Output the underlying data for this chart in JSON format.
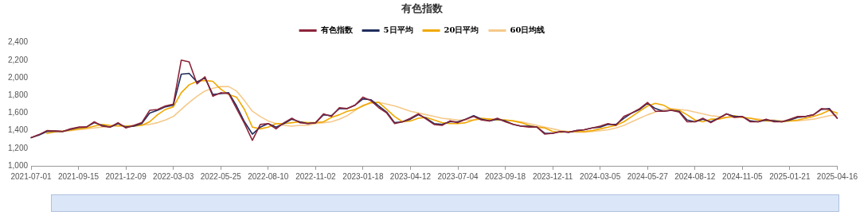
{
  "chart_data": {
    "type": "line",
    "title": "有色指数",
    "legend": "top",
    "marker": "none",
    "grid": false,
    "line_style": "solid",
    "categories": [
      "2021-07-01",
      null,
      null,
      null,
      null,
      null,
      "2021-09-15",
      null,
      null,
      null,
      null,
      null,
      "2021-12-09",
      null,
      null,
      null,
      null,
      null,
      "2022-03-03",
      null,
      null,
      null,
      null,
      null,
      "2022-05-25",
      null,
      null,
      null,
      null,
      null,
      "2022-08-10",
      null,
      null,
      null,
      null,
      null,
      "2022-11-02",
      null,
      null,
      null,
      null,
      null,
      "2023-01-18",
      null,
      null,
      null,
      null,
      null,
      "2023-04-12",
      null,
      null,
      null,
      null,
      null,
      "2023-07-04",
      null,
      null,
      null,
      null,
      null,
      "2023-09-18",
      null,
      null,
      null,
      null,
      null,
      "2023-12-11",
      null,
      null,
      null,
      null,
      null,
      "2024-03-05",
      null,
      null,
      null,
      null,
      null,
      "2024-05-27",
      null,
      null,
      null,
      null,
      null,
      "2024-08-12",
      null,
      null,
      null,
      null,
      null,
      "2024-11-05",
      null,
      null,
      null,
      null,
      null,
      "2025-01-21",
      null,
      null,
      null,
      null,
      null,
      "2025-04-16"
    ],
    "ylim": [
      1000,
      2400
    ],
    "yticks": [
      {
        "value": 1000,
        "label": "1,000"
      },
      {
        "value": 1200,
        "label": "1,200"
      },
      {
        "value": 1400,
        "label": "1,400"
      },
      {
        "value": 1600,
        "label": "1,600"
      },
      {
        "value": 1800,
        "label": "1,800"
      },
      {
        "value": 2000,
        "label": "2,000"
      },
      {
        "value": 2200,
        "label": "2,200"
      },
      {
        "value": 2400,
        "label": "2,400"
      }
    ],
    "series": [
      {
        "name": "有色指数",
        "color": "#8b2439",
        "values": [
          1320,
          1355,
          1400,
          1395,
          1390,
          1420,
          1440,
          1440,
          1500,
          1450,
          1440,
          1490,
          1430,
          1460,
          1490,
          1630,
          1640,
          1680,
          1700,
          2200,
          2180,
          1930,
          2010,
          1790,
          1830,
          1820,
          1650,
          1480,
          1290,
          1470,
          1480,
          1420,
          1490,
          1540,
          1490,
          1480,
          1490,
          1590,
          1560,
          1660,
          1650,
          1690,
          1780,
          1740,
          1660,
          1600,
          1480,
          1500,
          1540,
          1590,
          1530,
          1470,
          1460,
          1510,
          1490,
          1530,
          1560,
          1520,
          1510,
          1540,
          1500,
          1470,
          1450,
          1440,
          1440,
          1360,
          1370,
          1390,
          1380,
          1400,
          1410,
          1430,
          1450,
          1480,
          1460,
          1560,
          1600,
          1650,
          1720,
          1620,
          1620,
          1630,
          1610,
          1500,
          1500,
          1540,
          1490,
          1540,
          1590,
          1550,
          1560,
          1500,
          1500,
          1530,
          1500,
          1500,
          1530,
          1560,
          1560,
          1580,
          1650,
          1640,
          1540
        ]
      },
      {
        "name": "5日平均",
        "color": "#1f2d5c",
        "values": [
          1320,
          1350,
          1390,
          1395,
          1390,
          1415,
          1435,
          1440,
          1490,
          1460,
          1440,
          1480,
          1440,
          1450,
          1480,
          1600,
          1630,
          1670,
          1690,
          2040,
          2050,
          1950,
          2000,
          1810,
          1820,
          1830,
          1680,
          1500,
          1360,
          1440,
          1480,
          1440,
          1480,
          1530,
          1500,
          1480,
          1490,
          1580,
          1570,
          1650,
          1650,
          1690,
          1760,
          1750,
          1680,
          1610,
          1490,
          1500,
          1530,
          1580,
          1540,
          1480,
          1470,
          1500,
          1500,
          1530,
          1570,
          1530,
          1510,
          1530,
          1510,
          1470,
          1450,
          1450,
          1440,
          1370,
          1370,
          1390,
          1380,
          1400,
          1410,
          1430,
          1440,
          1470,
          1470,
          1540,
          1600,
          1640,
          1710,
          1650,
          1620,
          1630,
          1620,
          1520,
          1500,
          1530,
          1500,
          1540,
          1590,
          1560,
          1560,
          1510,
          1500,
          1520,
          1510,
          1500,
          1520,
          1550,
          1560,
          1580,
          1640,
          1650,
          1540
        ]
      },
      {
        "name": "20日平均",
        "color": "#f0a800",
        "values": [
          null,
          null,
          1370,
          1390,
          1395,
          1405,
          1420,
          1430,
          1450,
          1470,
          1460,
          1455,
          1450,
          1450,
          1460,
          1500,
          1580,
          1640,
          1670,
          1830,
          1920,
          1960,
          1970,
          1960,
          1870,
          1810,
          1780,
          1640,
          1440,
          1420,
          1440,
          1480,
          1480,
          1490,
          1500,
          1490,
          1490,
          1500,
          1550,
          1580,
          1620,
          1640,
          1680,
          1720,
          1720,
          1640,
          1560,
          1500,
          1510,
          1540,
          1550,
          1520,
          1490,
          1480,
          1480,
          1490,
          1520,
          1540,
          1530,
          1520,
          1520,
          1510,
          1490,
          1460,
          1440,
          1430,
          1390,
          1380,
          1390,
          1390,
          1390,
          1400,
          1420,
          1440,
          1460,
          1500,
          1560,
          1620,
          1680,
          1710,
          1690,
          1640,
          1630,
          1580,
          1520,
          1500,
          1530,
          1530,
          1550,
          1570,
          1550,
          1540,
          1520,
          1510,
          1510,
          1500,
          1510,
          1520,
          1540,
          1560,
          1590,
          1630,
          1600
        ]
      },
      {
        "name": "60日均线",
        "color": "#f5c98a",
        "values": [
          null,
          null,
          1370,
          1380,
          1390,
          1400,
          1410,
          1420,
          1430,
          1440,
          1450,
          1450,
          1455,
          1460,
          1465,
          1470,
          1490,
          1520,
          1560,
          1640,
          1720,
          1790,
          1850,
          1880,
          1900,
          1900,
          1850,
          1740,
          1620,
          1560,
          1510,
          1480,
          1460,
          1450,
          1460,
          1460,
          1480,
          1490,
          1500,
          1530,
          1570,
          1630,
          1690,
          1710,
          1720,
          1700,
          1680,
          1650,
          1620,
          1600,
          1580,
          1560,
          1540,
          1530,
          1520,
          1520,
          1520,
          1530,
          1530,
          1530,
          1520,
          1510,
          1500,
          1480,
          1460,
          1440,
          1420,
          1400,
          1390,
          1380,
          1380,
          1390,
          1400,
          1410,
          1430,
          1460,
          1500,
          1540,
          1580,
          1610,
          1640,
          1650,
          1640,
          1630,
          1610,
          1590,
          1570,
          1560,
          1550,
          1550,
          1550,
          1540,
          1530,
          1520,
          1520,
          1510,
          1510,
          1510,
          1520,
          1530,
          1550,
          1570,
          1580
        ]
      }
    ]
  }
}
